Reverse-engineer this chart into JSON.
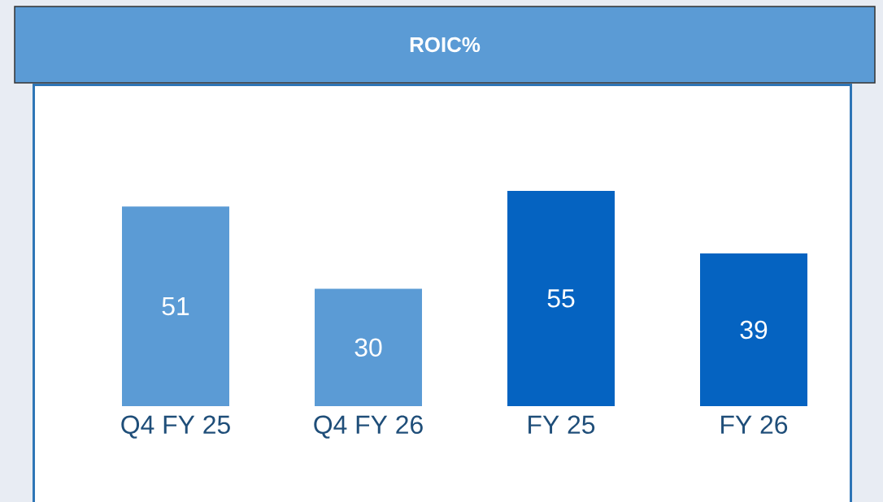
{
  "chart_data": {
    "type": "bar",
    "title": "ROIC%",
    "categories": [
      "Q4 FY 25",
      "Q4 FY 26",
      "FY 25",
      "FY 26"
    ],
    "values": [
      51,
      30,
      55,
      39
    ],
    "colors": [
      "#5b9bd5",
      "#5b9bd5",
      "#0563c1",
      "#0563c1"
    ],
    "data_labels": true
  }
}
